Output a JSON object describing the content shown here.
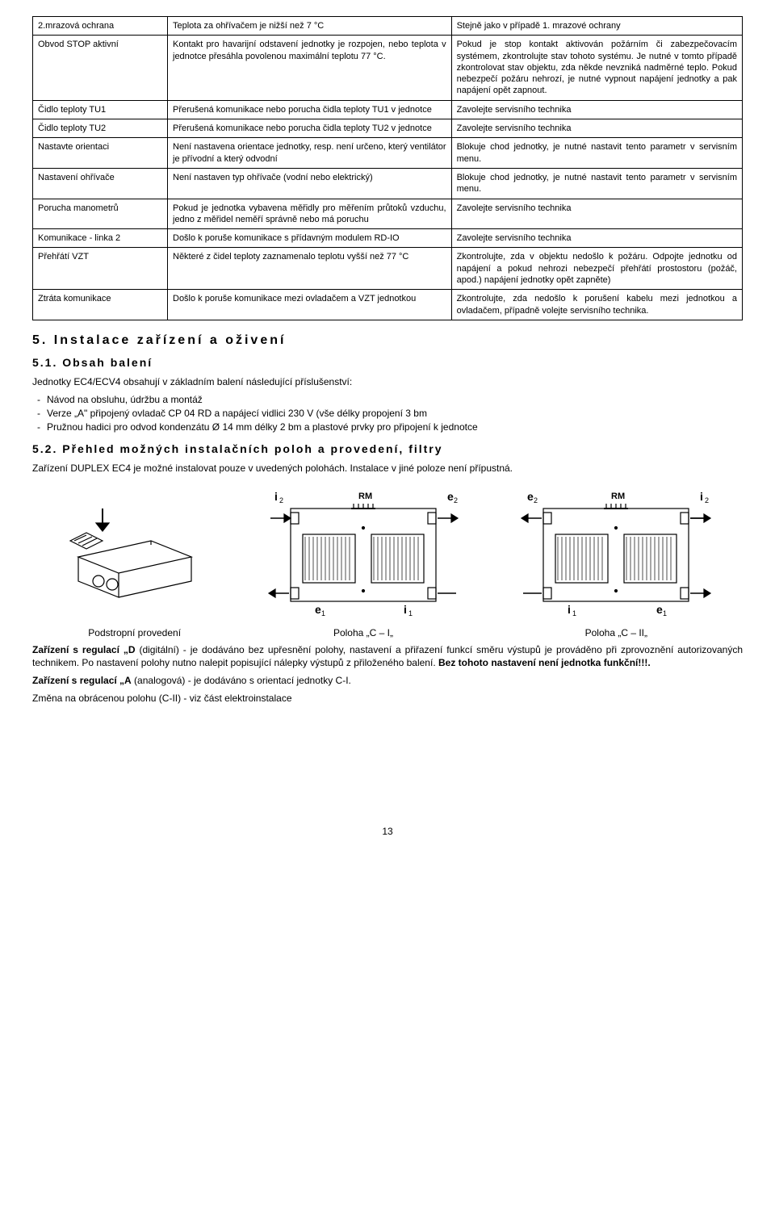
{
  "table": {
    "rows": [
      {
        "c1": "2.mrazová ochrana",
        "c2": "Teplota za ohřívačem je nižší než 7 °C",
        "c3": "Stejně jako v případě 1. mrazové ochrany"
      },
      {
        "c1": "Obvod STOP aktivní",
        "c2": "Kontakt pro havarijní odstavení jednotky je rozpojen, nebo teplota v jednotce přesáhla povolenou maximální teplotu 77 °C.",
        "c3": "Pokud je stop kontakt aktivován požárním či zabezpečovacím systémem, zkontrolujte stav tohoto systému.\nJe nutné v tomto případě zkontrolovat stav objektu, zda někde nevzniká nadměrné teplo. Pokud nebezpečí požáru nehrozí, je nutné vypnout napájení jednotky a pak napájení opět zapnout."
      },
      {
        "c1": "Čidlo teploty TU1",
        "c2": "Přerušená komunikace nebo porucha čidla teploty TU1 v jednotce",
        "c3": "Zavolejte servisního technika"
      },
      {
        "c1": "Čidlo teploty TU2",
        "c2": "Přerušená komunikace nebo porucha čidla teploty TU2 v jednotce",
        "c3": "Zavolejte servisního technika"
      },
      {
        "c1": "Nastavte orientaci",
        "c2": "Není nastavena orientace jednotky, resp. není určeno, který ventilátor je přívodní a který odvodní",
        "c3": "Blokuje chod jednotky, je nutné nastavit tento parametr v servisním menu."
      },
      {
        "c1": "Nastavení ohřívače",
        "c2": "Není nastaven typ ohřívače (vodní nebo elektrický)",
        "c3": "Blokuje chod jednotky, je nutné nastavit tento parametr v servisním menu."
      },
      {
        "c1": "Porucha manometrů",
        "c2": "Pokud je jednotka vybavena měřidly pro měřením průtoků vzduchu, jedno z měřidel neměří správně nebo má poruchu",
        "c3": "Zavolejte servisního technika"
      },
      {
        "c1": "Komunikace - linka 2",
        "c2": "Došlo k poruše komunikace s přídavným modulem RD-IO",
        "c3": "Zavolejte servisního technika"
      },
      {
        "c1": "Přehřátí VZT",
        "c2": "Některé z čidel teploty zaznamenalo teplotu vyšší než 77 °C",
        "c3": "Zkontrolujte, zda v objektu nedošlo k požáru. Odpojte jednotku od napájení a pokud nehrozi nebezpečí přehřátí prostostoru (požáč, apod.) napájení jednotky opět zapněte)"
      },
      {
        "c1": "Ztráta komunikace",
        "c2": "Došlo k poruše komunikace mezi ovladačem a VZT jednotkou",
        "c3": "Zkontrolujte, zda nedošlo k porušení kabelu mezi jednotkou a ovladačem, případně volejte servisního technika."
      }
    ]
  },
  "section5_title": "5.  Instalace zařízení a oživení",
  "section51_title": "5.1. Obsah balení",
  "section51_intro": "Jednotky EC4/ECV4 obsahují v základním balení následující příslušenství:",
  "section51_items": [
    "Návod na obsluhu, údržbu a montáž",
    "Verze „A\" připojený ovladač CP 04 RD a napájecí vidlici 230 V (vše délky propojení 3 bm",
    "Pružnou hadici pro odvod kondenzátu Ø 14 mm délky 2 bm a plastové prvky pro připojení k jednotce"
  ],
  "section52_title": "5.2. Přehled možných instalačních poloh a provedení, filtry",
  "section52_p1": "Zařízení DUPLEX EC4 je možné instalovat pouze v uvedených polohách. Instalace v jiné poloze není přípustná.",
  "diagram_captions": [
    "Podstropní provedení",
    "Poloha „C – I„",
    "Poloha „C – II„"
  ],
  "section52_p2_html": "<span class='bold'>Zařízení s regulací „D</span> (digitální) - je dodáváno bez upřesnění polohy, nastavení a přiřazení funkcí směru výstupů je prováděno při zprovoznění autorizovaných technikem. Po nastavení polohy nutno nalepit popisující nálepky výstupů z přiloženého balení. <span class='bold'>Bez tohoto nastavení není jednotka funkční!!!.</span>",
  "section52_p3_html": "<span class='bold'>Zařízení s regulací „A</span> (analogová) - je dodáváno s orientací jednotky C-I.",
  "section52_p4": "Změna na obrácenou polohu (C-II) - viz část elektroinstalace",
  "page_number": "13"
}
